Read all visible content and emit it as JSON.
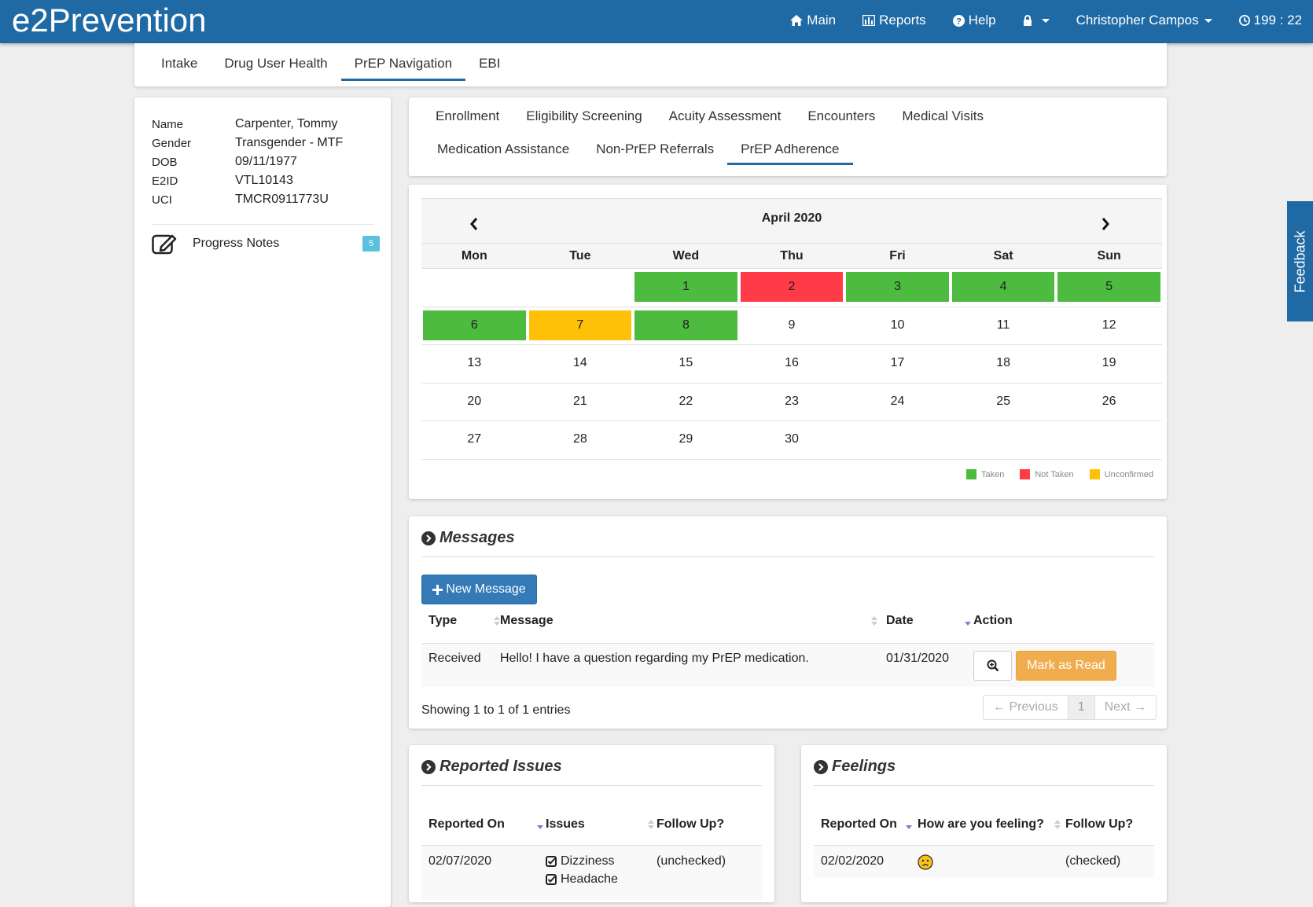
{
  "app": {
    "brand": "e2Prevention",
    "nav": {
      "main": "Main",
      "reports": "Reports",
      "help": "Help",
      "user": "Christopher Campos",
      "timer": "199 : 22"
    }
  },
  "top_tabs": [
    "Intake",
    "Drug User Health",
    "PrEP Navigation",
    "EBI"
  ],
  "top_tabs_active": "PrEP Navigation",
  "patient": {
    "fields": [
      {
        "label": "Name",
        "value": "Carpenter, Tommy"
      },
      {
        "label": "Gender",
        "value": "Transgender - MTF"
      },
      {
        "label": "DOB",
        "value": "09/11/1977"
      },
      {
        "label": "E2ID",
        "value": "VTL10143"
      },
      {
        "label": "UCI",
        "value": "TMCR0911773U"
      }
    ],
    "progress_notes_label": "Progress Notes",
    "progress_notes_count": "5"
  },
  "sub_tabs": {
    "row1": [
      "Enrollment",
      "Eligibility Screening",
      "Acuity Assessment",
      "Encounters",
      "Medical Visits"
    ],
    "row2": [
      "Medication Assistance",
      "Non-PrEP Referrals",
      "PrEP Adherence"
    ],
    "active": "PrEP Adherence"
  },
  "calendar": {
    "month_label": "April 2020",
    "day_names": [
      "Mon",
      "Tue",
      "Wed",
      "Thu",
      "Fri",
      "Sat",
      "Sun"
    ],
    "weeks": [
      [
        "",
        "",
        "1",
        "2",
        "3",
        "4",
        "5"
      ],
      [
        "6",
        "7",
        "8",
        "9",
        "10",
        "11",
        "12"
      ],
      [
        "13",
        "14",
        "15",
        "16",
        "17",
        "18",
        "19"
      ],
      [
        "20",
        "21",
        "22",
        "23",
        "24",
        "25",
        "26"
      ],
      [
        "27",
        "28",
        "29",
        "30",
        "",
        "",
        ""
      ]
    ],
    "statuses": {
      "1": "taken",
      "2": "not_taken",
      "3": "taken",
      "4": "taken",
      "5": "taken",
      "6": "taken",
      "7": "unconfirmed",
      "8": "taken"
    },
    "legend": {
      "taken": "Taken",
      "not_taken": "Not Taken",
      "unconfirmed": "Unconfirmed"
    },
    "colors": {
      "taken": "#4cbb3f",
      "not_taken": "#ff3b47",
      "unconfirmed": "#ffc107"
    }
  },
  "messages": {
    "title": "Messages",
    "new_button": "New Message",
    "columns": {
      "type": "Type",
      "message": "Message",
      "date": "Date",
      "action": "Action"
    },
    "rows": [
      {
        "type": "Received",
        "message": "Hello! I have a question regarding my PrEP medication.",
        "date": "01/31/2020",
        "mark_read": "Mark as Read"
      }
    ],
    "showing": "Showing 1 to 1 of 1 entries",
    "pager": {
      "prev": "← Previous",
      "page": "1",
      "next": "Next →"
    }
  },
  "issues": {
    "title": "Reported Issues",
    "columns": {
      "reported_on": "Reported On",
      "issues": "Issues",
      "follow_up": "Follow Up?"
    },
    "row": {
      "reported_on": "02/07/2020",
      "issues": [
        "Dizziness",
        "Headache"
      ],
      "follow_up": "(unchecked)"
    }
  },
  "feelings": {
    "title": "Feelings",
    "columns": {
      "reported_on": "Reported On",
      "feeling": "How are you feeling?",
      "follow_up": "Follow Up?"
    },
    "row": {
      "reported_on": "02/02/2020",
      "feeling_icon": "sad-face-icon",
      "follow_up": "(checked)"
    }
  },
  "feedback_label": "Feedback"
}
